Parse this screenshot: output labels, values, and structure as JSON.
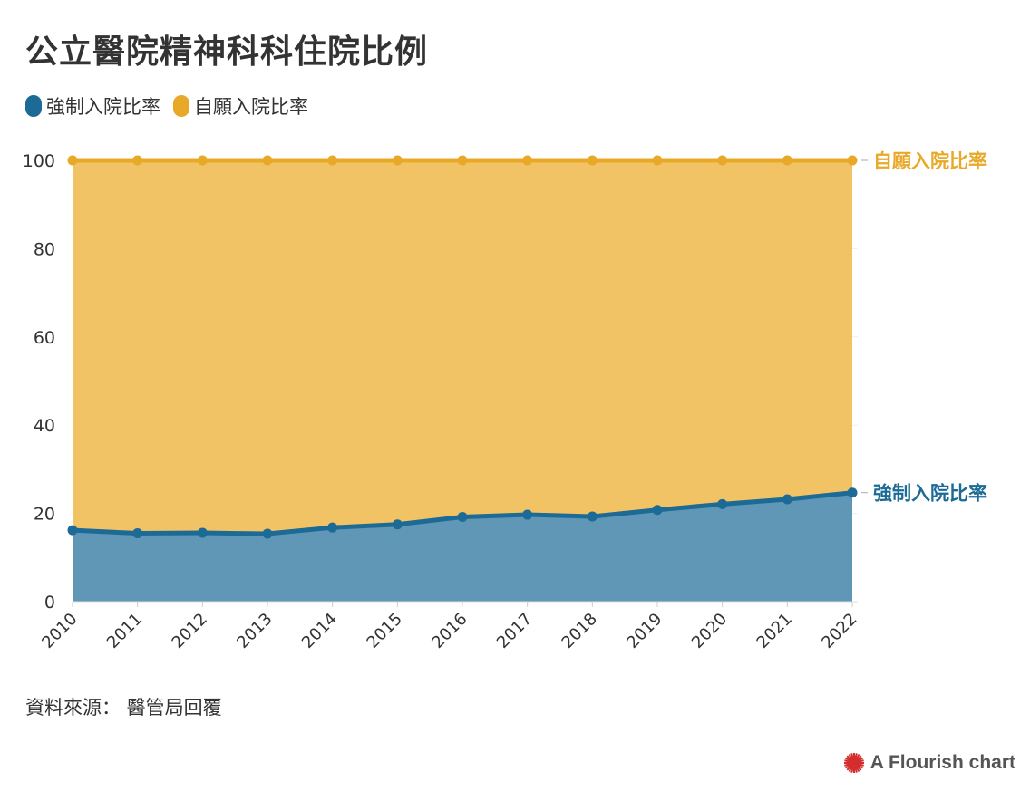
{
  "title": "公立醫院精神科科住院比例",
  "source": "資料來源： 醫管局回覆",
  "attribution": "A Flourish chart",
  "colors": {
    "voluntary": "#e8a928",
    "voluntary_fill": "#f2c365",
    "compulsory": "#1c6a96",
    "compulsory_fill": "#6096b6",
    "grid": "#eeeeee",
    "axis_text": "#333333",
    "flourish_mark": "#d42d2d"
  },
  "chart_data": {
    "type": "area",
    "stacked": true,
    "x": [
      "2010",
      "2011",
      "2012",
      "2013",
      "2014",
      "2015",
      "2016",
      "2017",
      "2018",
      "2019",
      "2020",
      "2021",
      "2022"
    ],
    "ylim": [
      0,
      100
    ],
    "yticks": [
      "0",
      "20",
      "40",
      "60",
      "80",
      "100"
    ],
    "grid": true,
    "legend_position": "top-left",
    "series": [
      {
        "name": "強制入院比率",
        "color": "#1c6a96",
        "values": [
          16.2,
          15.5,
          15.6,
          15.4,
          16.8,
          17.5,
          19.2,
          19.7,
          19.3,
          20.8,
          22.1,
          23.2,
          24.7
        ]
      },
      {
        "name": "自願入院比率",
        "color": "#e8a928",
        "values": [
          83.8,
          84.5,
          84.4,
          84.6,
          83.2,
          82.5,
          80.8,
          80.3,
          80.7,
          79.2,
          77.9,
          76.8,
          75.3
        ]
      }
    ]
  }
}
